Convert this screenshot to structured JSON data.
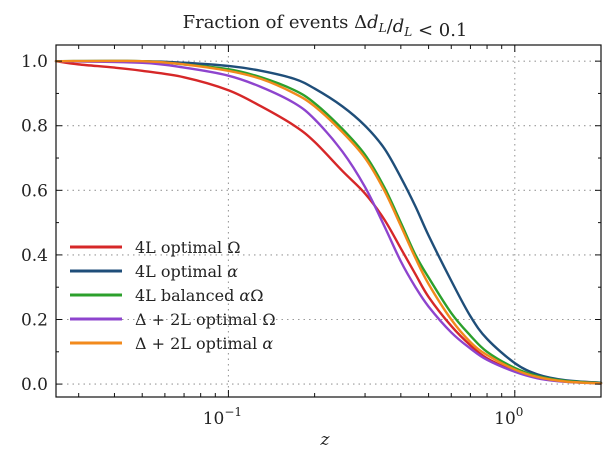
{
  "chart_data": {
    "type": "line",
    "title": "Fraction of events Δd_L/d_L < 0.1",
    "xlabel": "z",
    "ylabel": "",
    "x_scale": "log",
    "xlim": [
      0.025,
      2.0
    ],
    "ylim": [
      -0.04,
      1.05
    ],
    "grid": true,
    "legend_position": "lower-left",
    "x_major_ticks": [
      {
        "value": 0.1,
        "base": "10",
        "exp": "−1"
      },
      {
        "value": 1.0,
        "base": "10",
        "exp": "0"
      }
    ],
    "y_ticks": [
      {
        "value": 0.0,
        "label": "0.0"
      },
      {
        "value": 0.2,
        "label": "0.2"
      },
      {
        "value": 0.4,
        "label": "0.4"
      },
      {
        "value": 0.6,
        "label": "0.6"
      },
      {
        "value": 0.8,
        "label": "0.8"
      },
      {
        "value": 1.0,
        "label": "1.0"
      }
    ],
    "series": [
      {
        "name": "4L optimal Ω",
        "color": "#d62728",
        "x": [
          0.025,
          0.03,
          0.04,
          0.05,
          0.07,
          0.1,
          0.13,
          0.17,
          0.2,
          0.25,
          0.3,
          0.35,
          0.4,
          0.45,
          0.5,
          0.6,
          0.7,
          0.8,
          1.0,
          1.2,
          1.5,
          2.0
        ],
        "y": [
          1.0,
          0.99,
          0.98,
          0.97,
          0.95,
          0.91,
          0.86,
          0.8,
          0.75,
          0.66,
          0.59,
          0.51,
          0.42,
          0.34,
          0.27,
          0.18,
          0.12,
          0.08,
          0.04,
          0.02,
          0.01,
          0.004
        ]
      },
      {
        "name": "4L optimal α",
        "color": "#1f4e79",
        "x": [
          0.025,
          0.05,
          0.07,
          0.1,
          0.13,
          0.17,
          0.2,
          0.25,
          0.3,
          0.35,
          0.4,
          0.45,
          0.5,
          0.6,
          0.7,
          0.8,
          1.0,
          1.2,
          1.5,
          2.0
        ],
        "y": [
          1.0,
          1.0,
          0.995,
          0.985,
          0.97,
          0.945,
          0.915,
          0.86,
          0.8,
          0.73,
          0.64,
          0.55,
          0.46,
          0.32,
          0.21,
          0.14,
          0.065,
          0.03,
          0.012,
          0.004
        ]
      },
      {
        "name": "4L balanced αΩ",
        "color": "#2ca02c",
        "x": [
          0.025,
          0.05,
          0.07,
          0.1,
          0.13,
          0.17,
          0.2,
          0.25,
          0.3,
          0.35,
          0.4,
          0.45,
          0.5,
          0.6,
          0.7,
          0.8,
          1.0,
          1.2,
          1.5,
          2.0
        ],
        "y": [
          1.0,
          1.0,
          0.99,
          0.975,
          0.95,
          0.91,
          0.87,
          0.79,
          0.71,
          0.61,
          0.5,
          0.4,
          0.33,
          0.22,
          0.15,
          0.1,
          0.05,
          0.025,
          0.01,
          0.003
        ]
      },
      {
        "name": "Δ + 2L optimal Ω",
        "color": "#8e44ce",
        "x": [
          0.025,
          0.05,
          0.07,
          0.1,
          0.13,
          0.17,
          0.2,
          0.25,
          0.3,
          0.35,
          0.4,
          0.45,
          0.5,
          0.6,
          0.7,
          0.8,
          1.0,
          1.2,
          1.5,
          2.0
        ],
        "y": [
          1.0,
          0.995,
          0.98,
          0.955,
          0.92,
          0.87,
          0.82,
          0.72,
          0.61,
          0.49,
          0.38,
          0.3,
          0.24,
          0.16,
          0.11,
          0.075,
          0.038,
          0.018,
          0.007,
          0.002
        ]
      },
      {
        "name": "Δ + 2L optimal α",
        "color": "#f28a1c",
        "x": [
          0.025,
          0.05,
          0.07,
          0.1,
          0.13,
          0.17,
          0.2,
          0.25,
          0.3,
          0.35,
          0.4,
          0.45,
          0.5,
          0.6,
          0.7,
          0.8,
          1.0,
          1.2,
          1.5,
          2.0
        ],
        "y": [
          1.0,
          1.0,
          0.99,
          0.97,
          0.945,
          0.9,
          0.86,
          0.78,
          0.7,
          0.6,
          0.49,
          0.39,
          0.31,
          0.2,
          0.13,
          0.09,
          0.045,
          0.022,
          0.008,
          0.002
        ]
      }
    ]
  }
}
